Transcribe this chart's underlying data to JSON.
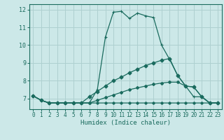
{
  "xlabel": "Humidex (Indice chaleur)",
  "xlim": [
    -0.5,
    23.5
  ],
  "ylim": [
    6.4,
    12.3
  ],
  "yticks": [
    7,
    8,
    9,
    10,
    11,
    12
  ],
  "xticks": [
    0,
    1,
    2,
    3,
    4,
    5,
    6,
    7,
    8,
    9,
    10,
    11,
    12,
    13,
    14,
    15,
    16,
    17,
    18,
    19,
    20,
    21,
    22,
    23
  ],
  "bg_color": "#cce8e8",
  "grid_color": "#aed0d0",
  "line_color": "#1a6b5e",
  "lines": [
    {
      "x": [
        0,
        1,
        2,
        3,
        4,
        5,
        6,
        7,
        8,
        9,
        10,
        11,
        12,
        13,
        14,
        15,
        16,
        17,
        18,
        19,
        20,
        21,
        22,
        23
      ],
      "y": [
        7.15,
        6.9,
        6.75,
        6.75,
        6.75,
        6.75,
        6.75,
        6.75,
        7.5,
        10.45,
        11.85,
        11.9,
        11.5,
        11.8,
        11.65,
        11.55,
        10.0,
        9.2,
        8.3,
        7.7,
        7.1,
        7.1,
        6.75,
        6.75
      ]
    },
    {
      "x": [
        0,
        1,
        2,
        3,
        4,
        5,
        6,
        7,
        8,
        9,
        10,
        11,
        12,
        13,
        14,
        15,
        16,
        17,
        18,
        19,
        20,
        21,
        22,
        23
      ],
      "y": [
        7.15,
        6.9,
        6.75,
        6.75,
        6.75,
        6.75,
        6.75,
        7.1,
        7.4,
        7.7,
        8.0,
        8.2,
        8.45,
        8.65,
        8.85,
        9.0,
        9.15,
        9.25,
        8.3,
        7.7,
        7.65,
        7.1,
        6.75,
        6.75
      ]
    },
    {
      "x": [
        0,
        1,
        2,
        3,
        4,
        5,
        6,
        7,
        8,
        9,
        10,
        11,
        12,
        13,
        14,
        15,
        16,
        17,
        18,
        19,
        20,
        21,
        22,
        23
      ],
      "y": [
        7.15,
        6.9,
        6.75,
        6.75,
        6.75,
        6.75,
        6.75,
        6.75,
        6.9,
        7.05,
        7.2,
        7.35,
        7.5,
        7.6,
        7.7,
        7.8,
        7.87,
        7.92,
        7.92,
        7.7,
        7.65,
        7.1,
        6.75,
        6.75
      ]
    },
    {
      "x": [
        0,
        1,
        2,
        3,
        4,
        5,
        6,
        7,
        8,
        9,
        10,
        11,
        12,
        13,
        14,
        15,
        16,
        17,
        18,
        19,
        20,
        21,
        22,
        23
      ],
      "y": [
        7.15,
        6.9,
        6.75,
        6.75,
        6.75,
        6.75,
        6.75,
        6.75,
        6.75,
        6.75,
        6.75,
        6.75,
        6.75,
        6.75,
        6.75,
        6.75,
        6.75,
        6.75,
        6.75,
        6.75,
        6.75,
        6.75,
        6.75,
        6.75
      ]
    }
  ]
}
